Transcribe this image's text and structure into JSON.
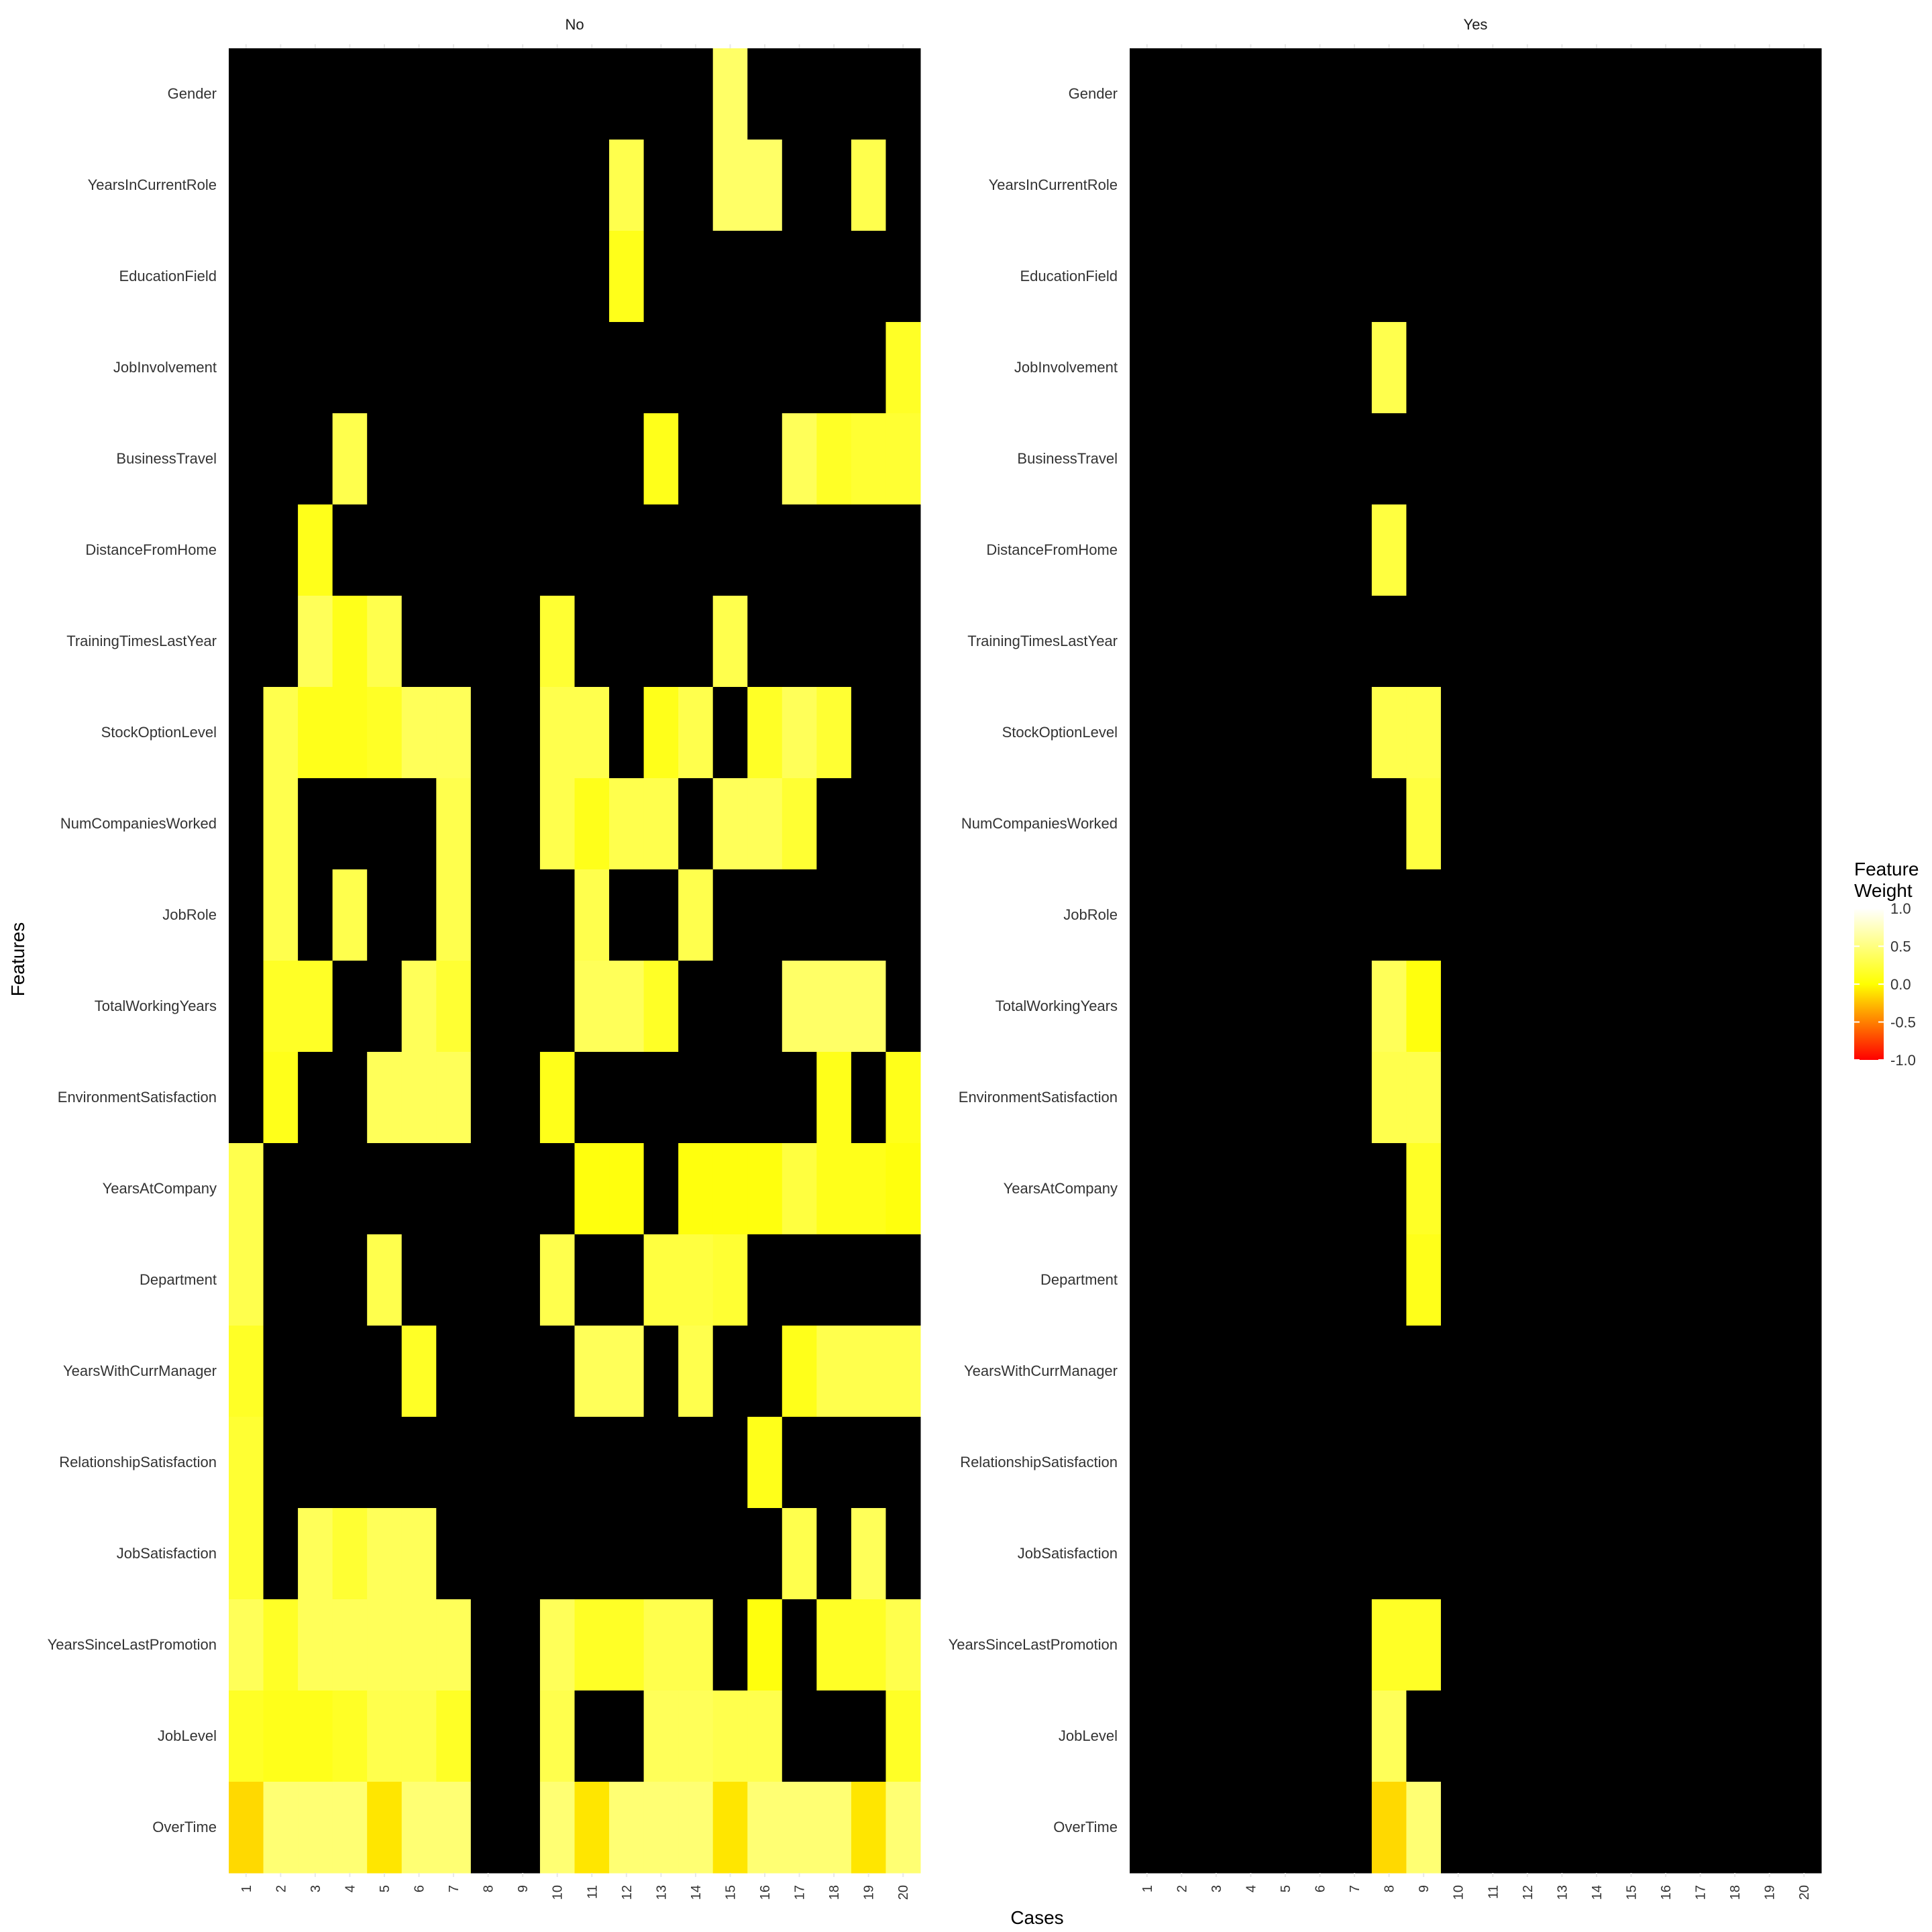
{
  "chart_data": {
    "type": "heatmap",
    "xlabel": "Cases",
    "ylabel": "Features",
    "cases": [
      "1",
      "2",
      "3",
      "4",
      "5",
      "6",
      "7",
      "8",
      "9",
      "10",
      "11",
      "12",
      "13",
      "14",
      "15",
      "16",
      "17",
      "18",
      "19",
      "20"
    ],
    "features": [
      "Gender",
      "YearsInCurrentRole",
      "EducationField",
      "JobInvolvement",
      "BusinessTravel",
      "DistanceFromHome",
      "TrainingTimesLastYear",
      "StockOptionLevel",
      "NumCompaniesWorked",
      "JobRole",
      "TotalWorkingYears",
      "EnvironmentSatisfaction",
      "YearsAtCompany",
      "Department",
      "YearsWithCurrManager",
      "RelationshipSatisfaction",
      "JobSatisfaction",
      "YearsSinceLastPromotion",
      "JobLevel",
      "OverTime"
    ],
    "legend": {
      "title_line1": "Feature",
      "title_line2": "Weight",
      "range": [
        -1,
        1
      ],
      "breaks": [
        "1.0",
        "0.5",
        "0.0",
        "-0.5",
        "-1.0"
      ],
      "colors": [
        "#ff0000",
        "#ffff00",
        "#ffffff"
      ]
    },
    "missing_color": "#000000",
    "panels": [
      {
        "name": "No",
        "weights": [
          [
            null,
            null,
            null,
            null,
            null,
            null,
            null,
            null,
            null,
            null,
            null,
            null,
            null,
            null,
            0.4,
            null,
            null,
            null,
            null,
            null
          ],
          [
            null,
            null,
            null,
            null,
            null,
            null,
            null,
            null,
            null,
            null,
            null,
            0.3,
            null,
            null,
            0.4,
            0.4,
            null,
            null,
            0.3,
            null
          ],
          [
            null,
            null,
            null,
            null,
            null,
            null,
            null,
            null,
            null,
            null,
            null,
            0.1,
            null,
            null,
            null,
            null,
            null,
            null,
            null,
            null
          ],
          [
            null,
            null,
            null,
            null,
            null,
            null,
            null,
            null,
            null,
            null,
            null,
            null,
            null,
            null,
            null,
            null,
            null,
            null,
            null,
            0.15
          ],
          [
            null,
            null,
            null,
            0.3,
            null,
            null,
            null,
            null,
            null,
            null,
            null,
            null,
            0.1,
            null,
            null,
            null,
            0.35,
            0.15,
            0.2,
            0.2
          ],
          [
            null,
            null,
            0.1,
            null,
            null,
            null,
            null,
            null,
            null,
            null,
            null,
            null,
            null,
            null,
            null,
            null,
            null,
            null,
            null,
            null
          ],
          [
            null,
            null,
            0.35,
            0.1,
            0.3,
            null,
            null,
            null,
            null,
            0.2,
            null,
            null,
            null,
            null,
            0.3,
            null,
            null,
            null,
            null,
            null
          ],
          [
            null,
            0.3,
            0.1,
            0.1,
            0.15,
            0.35,
            0.35,
            null,
            null,
            0.3,
            0.3,
            null,
            0.1,
            0.3,
            null,
            0.15,
            0.35,
            0.2,
            null,
            null
          ],
          [
            null,
            0.3,
            null,
            null,
            null,
            null,
            0.3,
            null,
            null,
            0.3,
            0.1,
            0.3,
            0.3,
            null,
            0.35,
            0.35,
            0.2,
            null,
            null,
            null
          ],
          [
            null,
            0.3,
            null,
            0.3,
            null,
            null,
            0.3,
            null,
            null,
            null,
            0.3,
            null,
            null,
            0.3,
            null,
            null,
            null,
            null,
            null,
            null
          ],
          [
            null,
            0.15,
            0.15,
            null,
            null,
            0.35,
            0.2,
            null,
            null,
            null,
            0.35,
            0.35,
            0.15,
            null,
            null,
            null,
            0.4,
            0.4,
            0.4,
            null
          ],
          [
            null,
            0.1,
            null,
            null,
            0.35,
            0.35,
            0.35,
            null,
            null,
            0.1,
            null,
            null,
            null,
            null,
            null,
            null,
            null,
            0.1,
            null,
            0.1
          ],
          [
            0.3,
            null,
            null,
            null,
            null,
            null,
            null,
            null,
            null,
            null,
            0.05,
            0.05,
            null,
            0.05,
            0.05,
            0.05,
            0.25,
            0.1,
            0.1,
            0.05
          ],
          [
            0.3,
            null,
            null,
            null,
            0.3,
            null,
            null,
            null,
            null,
            0.3,
            null,
            null,
            0.25,
            0.25,
            0.2,
            null,
            null,
            null,
            null,
            null
          ],
          [
            0.15,
            null,
            null,
            null,
            null,
            0.15,
            null,
            null,
            null,
            null,
            0.35,
            0.35,
            null,
            0.3,
            null,
            null,
            0.1,
            0.3,
            0.3,
            0.3
          ],
          [
            0.2,
            null,
            null,
            null,
            null,
            null,
            null,
            null,
            null,
            null,
            null,
            null,
            null,
            null,
            null,
            0.1,
            null,
            null,
            null,
            null
          ],
          [
            0.2,
            null,
            0.35,
            0.2,
            0.35,
            0.35,
            null,
            null,
            null,
            null,
            null,
            null,
            null,
            null,
            null,
            null,
            0.3,
            null,
            0.35,
            null
          ],
          [
            0.35,
            0.15,
            0.35,
            0.35,
            0.35,
            0.35,
            0.35,
            null,
            null,
            0.35,
            0.15,
            0.15,
            0.3,
            0.3,
            null,
            0.05,
            null,
            0.15,
            0.15,
            0.3
          ],
          [
            0.15,
            0.1,
            0.1,
            0.15,
            0.3,
            0.3,
            0.15,
            null,
            null,
            0.3,
            null,
            null,
            0.35,
            0.35,
            0.3,
            0.3,
            null,
            null,
            null,
            0.15
          ],
          [
            -0.15,
            0.45,
            0.45,
            0.45,
            -0.1,
            0.45,
            0.45,
            null,
            null,
            0.45,
            -0.1,
            0.45,
            0.45,
            0.45,
            -0.1,
            0.45,
            0.45,
            0.45,
            -0.1,
            0.45
          ]
        ]
      },
      {
        "name": "Yes",
        "weights": [
          [
            null,
            null,
            null,
            null,
            null,
            null,
            null,
            null,
            null,
            null,
            null,
            null,
            null,
            null,
            null,
            null,
            null,
            null,
            null,
            null
          ],
          [
            null,
            null,
            null,
            null,
            null,
            null,
            null,
            null,
            null,
            null,
            null,
            null,
            null,
            null,
            null,
            null,
            null,
            null,
            null,
            null
          ],
          [
            null,
            null,
            null,
            null,
            null,
            null,
            null,
            null,
            null,
            null,
            null,
            null,
            null,
            null,
            null,
            null,
            null,
            null,
            null,
            null
          ],
          [
            null,
            null,
            null,
            null,
            null,
            null,
            null,
            0.3,
            null,
            null,
            null,
            null,
            null,
            null,
            null,
            null,
            null,
            null,
            null,
            null
          ],
          [
            null,
            null,
            null,
            null,
            null,
            null,
            null,
            null,
            null,
            null,
            null,
            null,
            null,
            null,
            null,
            null,
            null,
            null,
            null,
            null
          ],
          [
            null,
            null,
            null,
            null,
            null,
            null,
            null,
            0.25,
            null,
            null,
            null,
            null,
            null,
            null,
            null,
            null,
            null,
            null,
            null,
            null
          ],
          [
            null,
            null,
            null,
            null,
            null,
            null,
            null,
            null,
            null,
            null,
            null,
            null,
            null,
            null,
            null,
            null,
            null,
            null,
            null,
            null
          ],
          [
            null,
            null,
            null,
            null,
            null,
            null,
            null,
            0.3,
            0.3,
            null,
            null,
            null,
            null,
            null,
            null,
            null,
            null,
            null,
            null,
            null
          ],
          [
            null,
            null,
            null,
            null,
            null,
            null,
            null,
            null,
            0.25,
            null,
            null,
            null,
            null,
            null,
            null,
            null,
            null,
            null,
            null,
            null
          ],
          [
            null,
            null,
            null,
            null,
            null,
            null,
            null,
            null,
            null,
            null,
            null,
            null,
            null,
            null,
            null,
            null,
            null,
            null,
            null,
            null
          ],
          [
            null,
            null,
            null,
            null,
            null,
            null,
            null,
            0.35,
            0.05,
            null,
            null,
            null,
            null,
            null,
            null,
            null,
            null,
            null,
            null,
            null
          ],
          [
            null,
            null,
            null,
            null,
            null,
            null,
            null,
            0.3,
            0.3,
            null,
            null,
            null,
            null,
            null,
            null,
            null,
            null,
            null,
            null,
            null
          ],
          [
            null,
            null,
            null,
            null,
            null,
            null,
            null,
            null,
            0.15,
            null,
            null,
            null,
            null,
            null,
            null,
            null,
            null,
            null,
            null,
            null
          ],
          [
            null,
            null,
            null,
            null,
            null,
            null,
            null,
            null,
            0.1,
            null,
            null,
            null,
            null,
            null,
            null,
            null,
            null,
            null,
            null,
            null
          ],
          [
            null,
            null,
            null,
            null,
            null,
            null,
            null,
            null,
            null,
            null,
            null,
            null,
            null,
            null,
            null,
            null,
            null,
            null,
            null,
            null
          ],
          [
            null,
            null,
            null,
            null,
            null,
            null,
            null,
            null,
            null,
            null,
            null,
            null,
            null,
            null,
            null,
            null,
            null,
            null,
            null,
            null
          ],
          [
            null,
            null,
            null,
            null,
            null,
            null,
            null,
            null,
            null,
            null,
            null,
            null,
            null,
            null,
            null,
            null,
            null,
            null,
            null,
            null
          ],
          [
            null,
            null,
            null,
            null,
            null,
            null,
            null,
            0.15,
            0.15,
            null,
            null,
            null,
            null,
            null,
            null,
            null,
            null,
            null,
            null,
            null
          ],
          [
            null,
            null,
            null,
            null,
            null,
            null,
            null,
            0.35,
            null,
            null,
            null,
            null,
            null,
            null,
            null,
            null,
            null,
            null,
            null,
            null
          ],
          [
            null,
            null,
            null,
            null,
            null,
            null,
            null,
            -0.15,
            0.45,
            null,
            null,
            null,
            null,
            null,
            null,
            null,
            null,
            null,
            null,
            null
          ]
        ]
      }
    ]
  }
}
